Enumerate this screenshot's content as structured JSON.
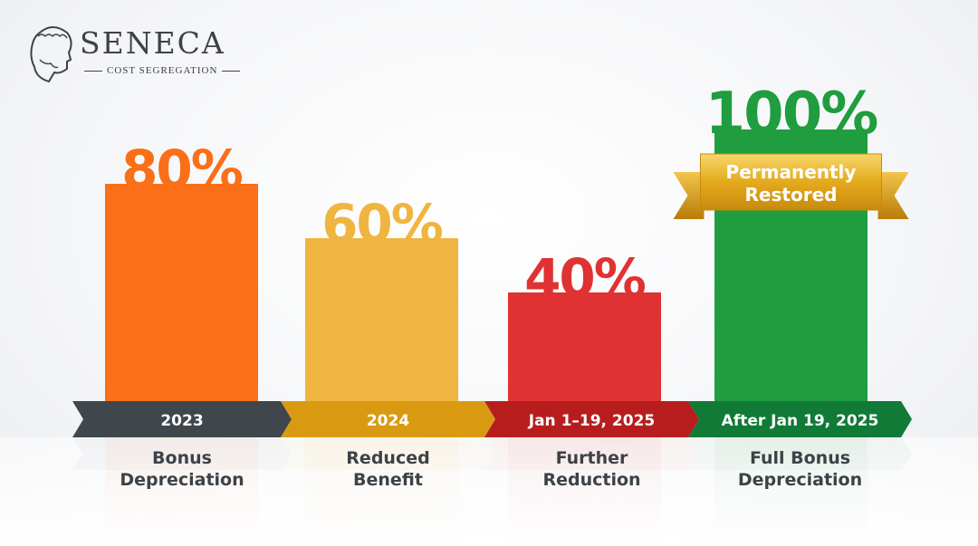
{
  "logo": {
    "name": "SENECA",
    "tagline": "COST SEGREGATION"
  },
  "chart_data": {
    "type": "bar",
    "categories": [
      "2023",
      "2024",
      "Jan 1–19, 2025",
      "After Jan 19, 2025"
    ],
    "descriptions": [
      [
        "Bonus",
        "Depreciation"
      ],
      [
        "Reduced",
        "Benefit"
      ],
      [
        "Further",
        "Reduction"
      ],
      [
        "Full Bonus",
        "Depreciation"
      ]
    ],
    "values": [
      80,
      60,
      40,
      100
    ],
    "data_labels": [
      "80%",
      "60%",
      "40%",
      "100%"
    ],
    "unit": "%",
    "ylim": [
      0,
      100
    ],
    "grid": false,
    "bar_colors": [
      "#fa6f17",
      "#f0b540",
      "#e03232",
      "#1f9d3f"
    ],
    "band_colors": [
      "#3f464c",
      "#d99a12",
      "#b81d1d",
      "#107a36"
    ],
    "label_colors": [
      "#fa6f17",
      "#f0b540",
      "#e03232",
      "#1f9d3f"
    ],
    "annotation": {
      "category": "After Jan 19, 2025",
      "lines": [
        "Permanently",
        "Restored"
      ],
      "style": "gold-ribbon"
    }
  }
}
